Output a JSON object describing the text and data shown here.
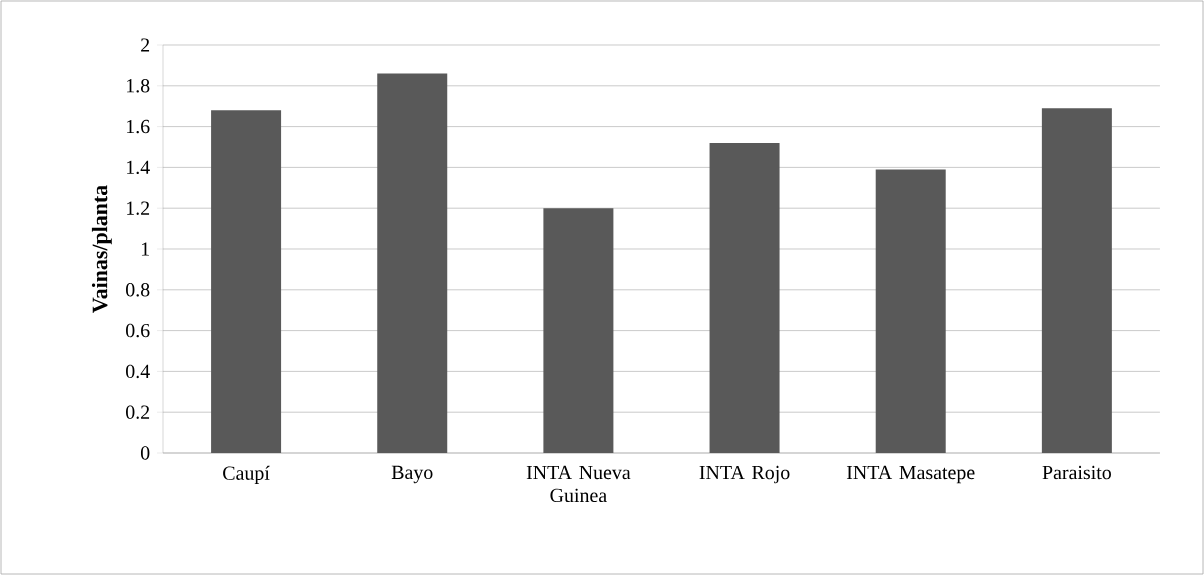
{
  "chart_data": {
    "type": "bar",
    "ylabel": "Vainas/planta",
    "categories": [
      "Caupí",
      "Bayo",
      "INTA Nueva Guinea",
      "INTA Rojo",
      "INTA Masatepe",
      "Paraisito"
    ],
    "values": [
      1.68,
      1.86,
      1.2,
      1.52,
      1.39,
      1.69
    ],
    "color": "#595959",
    "ylim": [
      0,
      2
    ],
    "yticks": [
      0,
      0.2,
      0.4,
      0.6,
      0.8,
      1,
      1.2,
      1.4,
      1.6,
      1.8,
      2
    ],
    "grid": "y"
  }
}
